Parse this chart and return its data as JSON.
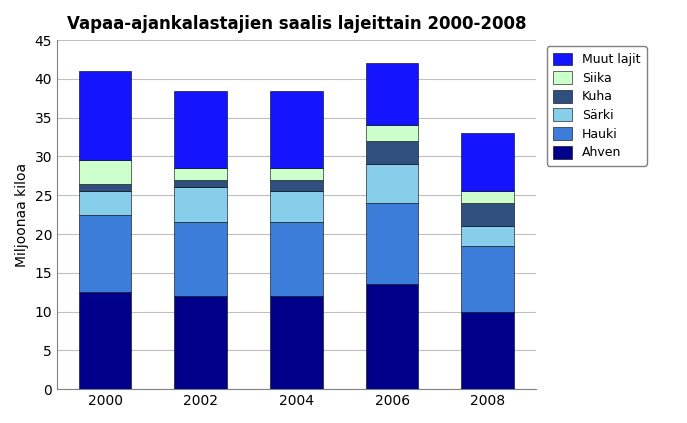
{
  "title": "Vapaa-ajankalastajien saalis lajeittain 2000-2008",
  "ylabel": "Miljoonaa kiloa",
  "years": [
    2000,
    2002,
    2004,
    2006,
    2008
  ],
  "series": {
    "Ahven": [
      12.5,
      12.0,
      12.0,
      13.5,
      10.0
    ],
    "Hauki": [
      10.0,
      9.5,
      9.5,
      10.5,
      8.5
    ],
    "Sarki": [
      3.0,
      4.5,
      4.0,
      5.0,
      2.5
    ],
    "Kuha": [
      1.0,
      1.0,
      1.5,
      3.0,
      3.0
    ],
    "Siika": [
      3.0,
      1.5,
      1.5,
      2.0,
      1.5
    ],
    "Muut lajit": [
      11.5,
      10.0,
      10.0,
      8.0,
      7.5
    ]
  },
  "series_labels": {
    "Ahven": "Ahven",
    "Hauki": "Hauki",
    "Sarki": "Särki",
    "Kuha": "Kuha",
    "Siika": "Siika",
    "Muut lajit": "Muut lajit"
  },
  "colors": {
    "Ahven": "#00008B",
    "Hauki": "#3B7DD8",
    "Sarki": "#87CEEB",
    "Kuha": "#2F4F7F",
    "Siika": "#CCFFCC",
    "Muut lajit": "#1414FF"
  },
  "ylim": [
    0,
    45
  ],
  "yticks": [
    0,
    5,
    10,
    15,
    20,
    25,
    30,
    35,
    40,
    45
  ],
  "bar_width": 0.55,
  "background_color": "#FFFFFF",
  "grid_color": "#C0C0C0",
  "title_fontsize": 12,
  "axis_label_fontsize": 10,
  "tick_fontsize": 10,
  "legend_fontsize": 9
}
